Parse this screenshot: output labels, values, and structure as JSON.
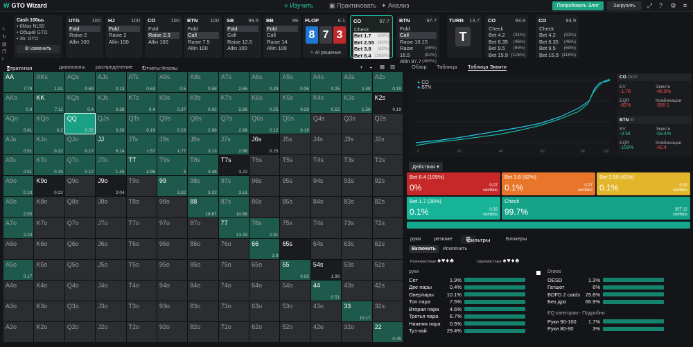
{
  "topbar": {
    "brand": "GTO Wizard",
    "nav": [
      "Изучить",
      "Практиковать",
      "Анализ"
    ],
    "elite": "Попробовать Элит",
    "upload": "Загрузить"
  },
  "info": {
    "title": "Cash 100ьь",
    "l1": "• 6Max NL50",
    "l2": "• Общий GTO",
    "l3": "• 3b: GTO",
    "change": "изменить"
  },
  "seats": [
    {
      "pos": "UTG",
      "stack": "100",
      "actions": [
        {
          "t": "Fold",
          "sel": true
        },
        {
          "t": "Raise 2"
        },
        {
          "t": "Allin 100"
        }
      ]
    },
    {
      "pos": "HJ",
      "stack": "100",
      "actions": [
        {
          "t": "Fold",
          "sel": true
        },
        {
          "t": "Raise 2"
        },
        {
          "t": "Allin 100"
        }
      ]
    },
    {
      "pos": "CO",
      "stack": "100",
      "actions": [
        {
          "t": "Fold"
        },
        {
          "t": "Raise 2.3",
          "sel": true
        },
        {
          "t": "Allin 100"
        }
      ]
    },
    {
      "pos": "BTN",
      "stack": "100",
      "actions": [
        {
          "t": "Fold"
        },
        {
          "t": "Call",
          "sel": true
        },
        {
          "t": "Raise 7.5"
        },
        {
          "t": "Allin 100"
        }
      ]
    },
    {
      "pos": "SB",
      "stack": "99.5",
      "actions": [
        {
          "t": "Fold",
          "sel": true
        },
        {
          "t": "Call"
        },
        {
          "t": "Raise 12.5"
        },
        {
          "t": "Allin 100"
        }
      ]
    },
    {
      "pos": "BB",
      "stack": "99",
      "actions": [
        {
          "t": "Fold",
          "sel": true
        },
        {
          "t": "Call"
        },
        {
          "t": "Raise 14"
        },
        {
          "t": "Allin 100"
        }
      ]
    }
  ],
  "flop": {
    "label": "FLOP",
    "pot": "6.1",
    "cards": [
      {
        "r": "8",
        "c": "#1f78d1"
      },
      {
        "r": "7",
        "c": "#3a3c41"
      },
      {
        "r": "3",
        "c": "#c0292b"
      }
    ],
    "ai": "AI решение"
  },
  "co_node": {
    "pos": "CO",
    "stack": "97.7",
    "actions": [
      {
        "t": "Check",
        "p": ""
      },
      {
        "t": "Bet 1.7",
        "p": "(28%)"
      },
      {
        "t": "Bet 2.55",
        "p": "(42%)"
      },
      {
        "t": "Bet 3.8",
        "p": "(62%)"
      },
      {
        "t": "Bet 6.4",
        "p": "(105%)"
      }
    ]
  },
  "btn_node": {
    "pos": "BTN",
    "stack": "97.7",
    "actions": [
      {
        "t": "Fold",
        "p": ""
      },
      {
        "t": "Call",
        "p": ""
      },
      {
        "t": "Raise 10.15",
        "p": "(46%)"
      },
      {
        "t": "Raise 16.5",
        "p": "(81%)"
      },
      {
        "t": "Allin 97.7",
        "p": "(485%)"
      }
    ]
  },
  "turn": {
    "label": "TURN",
    "pot": "13.7",
    "card": "T"
  },
  "co_turn": {
    "pos": "CO",
    "stack": "93.9",
    "actions": [
      {
        "t": "Check",
        "p": ""
      },
      {
        "t": "Bet 4.2",
        "p": "(31%)"
      },
      {
        "t": "Bet 6.35",
        "p": "(46%)"
      },
      {
        "t": "Bet 9.5",
        "p": "(69%)"
      },
      {
        "t": "Bet 15.9",
        "p": "(116%)"
      }
    ]
  },
  "co_turn2": {
    "pos": "CO",
    "stack": "93.9",
    "actions": [
      {
        "t": "Check",
        "p": ""
      },
      {
        "t": "Bet 4.2",
        "p": "(31%)"
      },
      {
        "t": "Bet 6.35",
        "p": "(46%)"
      },
      {
        "t": "Bet 9.5",
        "p": "(69%)"
      },
      {
        "t": "Bet 15.9",
        "p": "(116%)"
      }
    ]
  },
  "left_tabs": [
    "стратегия + EV",
    "диапазоны",
    "распределение",
    "Отчеты:Флопы"
  ],
  "right_tabs": [
    "Обзор",
    "Таблица",
    "Таблица Эквити"
  ],
  "legend": [
    "CO",
    "BTN"
  ],
  "eq": {
    "co": {
      "head": "CO",
      "sub": "OOP",
      "ev_l": "EV",
      "ev": "-1.78",
      "eq_l": "Эквити",
      "eq": "-46.8%",
      "eqr_l": "EQR",
      "eqr": "-82%",
      "comb_l": "Комбинации",
      "comb": "-358.1"
    },
    "btn": {
      "head": "BTN",
      "sub": "IP",
      "ev_l": "EV",
      "ev": "-3.54",
      "eq_l": "Эквити",
      "eq": "-53.4%",
      "eqr_l": "EQR",
      "eqr": "-109%",
      "comb_l": "Комбинации",
      "comb": "-42.4"
    }
  },
  "actions_label": "Действия",
  "action_boxes": [
    {
      "name": "Bet 6.4 (105%)",
      "pct": "0%",
      "combos": "0.07",
      "color": "#c62828"
    },
    {
      "name": "Bet 3.8 (62%)",
      "pct": "0.1%",
      "combos": "0.27",
      "color": "#e8752a"
    },
    {
      "name": "Bet 2.55 (42%)",
      "pct": "0.1%",
      "combos": "0.32",
      "color": "#e3b52c"
    },
    {
      "name": "Bet 1.7 (28%)",
      "pct": "0.1%",
      "combos": "0.32",
      "color": "#18b49a"
    },
    {
      "name": "Check",
      "pct": "99.7%",
      "combos": "357.12",
      "color": "#14a389"
    }
  ],
  "combos_word": "combos",
  "bottom_tabs": [
    "руки",
    "резюме",
    "фильтры",
    "Блокеры"
  ],
  "include": [
    "Включить",
    "Исключить"
  ],
  "suits": {
    "same": "Разномастные",
    "one": "Одномастные"
  },
  "hands_head": "руки",
  "hands": [
    {
      "n": "Сет",
      "v": "1.9%"
    },
    {
      "n": "Две пары",
      "v": "0.4%"
    },
    {
      "n": "Оверпары",
      "v": "10.1%"
    },
    {
      "n": "Топ пара",
      "v": "7.5%"
    },
    {
      "n": "Вторая пара",
      "v": "4.6%"
    },
    {
      "n": "Третья пара",
      "v": "6.7%"
    },
    {
      "n": "Нижняя пара",
      "v": "0.5%"
    },
    {
      "n": "Туз-хай",
      "v": "29.4%"
    }
  ],
  "draws_head": "Draws",
  "draws": [
    {
      "n": "OESD",
      "v": "1.3%"
    },
    {
      "n": "Гатшот",
      "v": "6%"
    },
    {
      "n": "BDFD 2 cards",
      "v": "25.8%"
    },
    {
      "n": "Без дро",
      "v": "66.9%"
    }
  ],
  "eq_cat_head": "EQ категории - Подробно",
  "eq_cats": [
    {
      "n": "Руки 90-100",
      "v": "1.7%"
    },
    {
      "n": "Руки 80-90",
      "v": "3%"
    }
  ],
  "grid": [
    [
      "AA",
      "7.79",
      1
    ],
    [
      "AKs",
      "1.31",
      1
    ],
    [
      "AQs",
      "0.69",
      1
    ],
    [
      "AJs",
      "0.13",
      1
    ],
    [
      "ATs",
      "0.63",
      1
    ],
    [
      "A9s",
      "0.5",
      1
    ],
    [
      "A8s",
      "0.58",
      1
    ],
    [
      "A7s",
      "2.65",
      1
    ],
    [
      "A6s",
      "0.29",
      1
    ],
    [
      "A5s",
      "0.36",
      1
    ],
    [
      "A4s",
      "0.25",
      1
    ],
    [
      "A3s",
      "1.49",
      1
    ],
    [
      "A2s",
      "0.19",
      1
    ],
    [
      "AKo",
      "0.9",
      1
    ],
    [
      "KK",
      "7.11",
      1
    ],
    [
      "KQs",
      "0.4",
      1
    ],
    [
      "KJs",
      "0.38",
      1
    ],
    [
      "KTs",
      "0.4",
      1
    ],
    [
      "K9s",
      "0.37",
      1
    ],
    [
      "K8s",
      "0.02",
      1
    ],
    [
      "K7s",
      "2.66",
      1
    ],
    [
      "K6s",
      "0.25",
      1
    ],
    [
      "K5s",
      "0.28",
      1
    ],
    [
      "K4s",
      "0.15",
      1
    ],
    [
      "K3s",
      "1.56",
      1
    ],
    [
      "K2s",
      "0.19",
      2
    ],
    [
      "AQo",
      "0.61",
      1
    ],
    [
      "KQo",
      "0.2",
      1
    ],
    [
      "QQ",
      "6.56",
      1
    ],
    [
      "QJs",
      "0.26",
      1
    ],
    [
      "QTs",
      "0.19",
      1
    ],
    [
      "Q9s",
      "0.23",
      1
    ],
    [
      "Q8s",
      "2.98",
      1
    ],
    [
      "Q7s",
      "2.66",
      1
    ],
    [
      "Q6s",
      "0.12",
      1
    ],
    [
      "Q5s",
      "0.19",
      1
    ],
    [
      "Q4s",
      "",
      0
    ],
    [
      "Q3s",
      "",
      0
    ],
    [
      "Q2s",
      "",
      0
    ],
    [
      "AJo",
      "0.51",
      1
    ],
    [
      "KJo",
      "0.22",
      1
    ],
    [
      "QJo",
      "0.17",
      1
    ],
    [
      "JJ",
      "6.14",
      1
    ],
    [
      "JTs",
      "1.57",
      1
    ],
    [
      "J9s",
      "1.77",
      1
    ],
    [
      "J8s",
      "3.13",
      1
    ],
    [
      "J7s",
      "2.86",
      1
    ],
    [
      "J6s",
      "0.25",
      2
    ],
    [
      "J5s",
      "",
      0
    ],
    [
      "J4s",
      "",
      0
    ],
    [
      "J3s",
      "",
      0
    ],
    [
      "J2s",
      "",
      0
    ],
    [
      "ATo",
      "0.51",
      1
    ],
    [
      "KTo",
      "0.19",
      1
    ],
    [
      "QTo",
      "0.17",
      1
    ],
    [
      "JTo",
      "1.45",
      1
    ],
    [
      "TT",
      "4.96",
      1
    ],
    [
      "T9s",
      "3",
      1
    ],
    [
      "T8s",
      "3.48",
      1
    ],
    [
      "T7s",
      "3.22",
      2
    ],
    [
      "T6s",
      "",
      0
    ],
    [
      "T5s",
      "",
      0
    ],
    [
      "T4s",
      "",
      0
    ],
    [
      "T3s",
      "",
      0
    ],
    [
      "T2s",
      "",
      0
    ],
    [
      "A9o",
      "0.19",
      1
    ],
    [
      "K9o",
      "0.22",
      2
    ],
    [
      "Q9o",
      "",
      0
    ],
    [
      "J9o",
      "2.04",
      2
    ],
    [
      "T9o",
      "",
      0
    ],
    [
      "99",
      "3.32",
      1
    ],
    [
      "98s",
      "3.32",
      1
    ],
    [
      "97s",
      "3.51",
      1
    ],
    [
      "96s",
      "",
      0
    ],
    [
      "95s",
      "",
      0
    ],
    [
      "94s",
      "",
      0
    ],
    [
      "93s",
      "",
      0
    ],
    [
      "92s",
      "",
      0
    ],
    [
      "A8o",
      "2.55",
      1
    ],
    [
      "K8o",
      "",
      0
    ],
    [
      "Q8o",
      "",
      0
    ],
    [
      "J8o",
      "",
      0
    ],
    [
      "T8o",
      "",
      0
    ],
    [
      "98o",
      "",
      0
    ],
    [
      "88",
      "18.67",
      1
    ],
    [
      "87s",
      "10.66",
      1
    ],
    [
      "86s",
      "",
      0
    ],
    [
      "85s",
      "",
      0
    ],
    [
      "84s",
      "",
      0
    ],
    [
      "83s",
      "",
      0
    ],
    [
      "82s",
      "",
      0
    ],
    [
      "A7o",
      "2.23",
      1
    ],
    [
      "K7o",
      "",
      0
    ],
    [
      "Q7o",
      "",
      0
    ],
    [
      "J7o",
      "",
      0
    ],
    [
      "T7o",
      "",
      0
    ],
    [
      "97o",
      "",
      0
    ],
    [
      "87o",
      "",
      0
    ],
    [
      "77",
      "13.33",
      1
    ],
    [
      "76s",
      "2.91",
      1
    ],
    [
      "75s",
      "",
      0
    ],
    [
      "74s",
      "",
      0
    ],
    [
      "73s",
      "",
      0
    ],
    [
      "72s",
      "",
      0
    ],
    [
      "A6o",
      "",
      0
    ],
    [
      "K6o",
      "",
      0
    ],
    [
      "Q6o",
      "",
      0
    ],
    [
      "J6o",
      "",
      0
    ],
    [
      "T6o",
      "",
      0
    ],
    [
      "96o",
      "",
      0
    ],
    [
      "86o",
      "",
      0
    ],
    [
      "76o",
      "",
      0
    ],
    [
      "66",
      "3.9",
      1
    ],
    [
      "65s",
      "",
      2
    ],
    [
      "64s",
      "",
      0
    ],
    [
      "63s",
      "",
      0
    ],
    [
      "62s",
      "",
      0
    ],
    [
      "A5o",
      "0.17",
      1
    ],
    [
      "K5o",
      "",
      0
    ],
    [
      "Q5o",
      "",
      0
    ],
    [
      "J5o",
      "",
      0
    ],
    [
      "T5o",
      "",
      0
    ],
    [
      "95o",
      "",
      0
    ],
    [
      "85o",
      "",
      0
    ],
    [
      "75o",
      "",
      0
    ],
    [
      "65o",
      "",
      0
    ],
    [
      "55",
      "0.93",
      1
    ],
    [
      "54s",
      "1.98",
      2
    ],
    [
      "53s",
      "",
      0
    ],
    [
      "52s",
      "",
      0
    ],
    [
      "A4o",
      "",
      0
    ],
    [
      "K4o",
      "",
      0
    ],
    [
      "Q4o",
      "",
      0
    ],
    [
      "J4o",
      "",
      0
    ],
    [
      "T4o",
      "",
      0
    ],
    [
      "94o",
      "",
      0
    ],
    [
      "84o",
      "",
      0
    ],
    [
      "74o",
      "",
      0
    ],
    [
      "64o",
      "",
      0
    ],
    [
      "54o",
      "",
      0
    ],
    [
      "44",
      "0.51",
      1
    ],
    [
      "43s",
      "",
      0
    ],
    [
      "42s",
      "",
      0
    ],
    [
      "A3o",
      "",
      0
    ],
    [
      "K3o",
      "",
      0
    ],
    [
      "Q3o",
      "",
      0
    ],
    [
      "J3o",
      "",
      0
    ],
    [
      "T3o",
      "",
      0
    ],
    [
      "93o",
      "",
      0
    ],
    [
      "83o",
      "",
      0
    ],
    [
      "73o",
      "",
      0
    ],
    [
      "63o",
      "",
      0
    ],
    [
      "53o",
      "",
      0
    ],
    [
      "43o",
      "",
      0
    ],
    [
      "33",
      "10.17",
      1
    ],
    [
      "32s",
      "",
      0
    ],
    [
      "A2o",
      "",
      0
    ],
    [
      "K2o",
      "",
      0
    ],
    [
      "Q2o",
      "",
      0
    ],
    [
      "J2o",
      "",
      0
    ],
    [
      "T2o",
      "",
      0
    ],
    [
      "92o",
      "",
      0
    ],
    [
      "82o",
      "",
      0
    ],
    [
      "72o",
      "",
      0
    ],
    [
      "62o",
      "",
      0
    ],
    [
      "52o",
      "",
      0
    ],
    [
      "42o",
      "",
      0
    ],
    [
      "32o",
      "",
      0
    ],
    [
      "22",
      "0.49",
      1
    ]
  ]
}
